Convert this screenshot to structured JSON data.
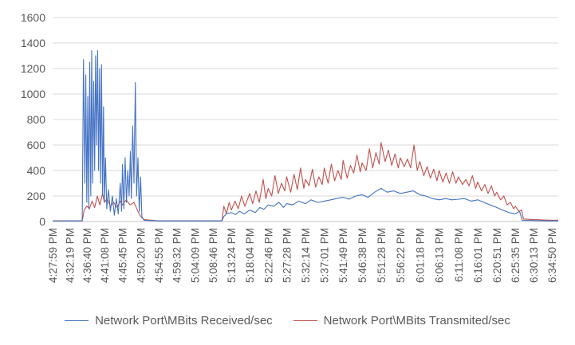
{
  "chart_data": {
    "type": "line",
    "title": "",
    "xlabel": "",
    "ylabel": "",
    "ylim": [
      0,
      1600
    ],
    "y_ticks": [
      0,
      200,
      400,
      600,
      800,
      1000,
      1200,
      1400,
      1600
    ],
    "gridlines": true,
    "legend_position": "bottom",
    "x_tick_labels": [
      "4:27:59 PM",
      "4:32:19 PM",
      "4:36:40 PM",
      "4:41:08 PM",
      "4:45:45 PM",
      "4:50:20 PM",
      "4:54:55 PM",
      "4:59:32 PM",
      "5:04:09 PM",
      "5:08:46 PM",
      "5:13:24 PM",
      "5:18:04 PM",
      "5:22:46 PM",
      "5:27:28 PM",
      "5:32:14 PM",
      "5:37:01 PM",
      "5:41:49 PM",
      "5:46:38 PM",
      "5:51:28 PM",
      "5:56:22 PM",
      "6:01:18 PM",
      "6:06:13 PM",
      "6:11:08 PM",
      "6:16:01 PM",
      "6:20:51 PM",
      "6:25:35 PM",
      "6:30:13 PM",
      "6:34:50 PM"
    ],
    "x_range": [
      "4:27:59 PM",
      "6:36:30 PM"
    ],
    "series": [
      {
        "name": "Network Port\\MBits Received/sec",
        "color": "#4472c4",
        "points": [
          [
            "4:27:59 PM",
            5
          ],
          [
            "4:32:19 PM",
            5
          ],
          [
            "4:35:30 PM",
            5
          ],
          [
            "4:35:50 PM",
            1270
          ],
          [
            "4:36:10 PM",
            300
          ],
          [
            "4:36:25 PM",
            1150
          ],
          [
            "4:36:40 PM",
            150
          ],
          [
            "4:36:55 PM",
            980
          ],
          [
            "4:37:10 PM",
            100
          ],
          [
            "4:37:25 PM",
            1250
          ],
          [
            "4:37:40 PM",
            200
          ],
          [
            "4:37:55 PM",
            1340
          ],
          [
            "4:38:10 PM",
            300
          ],
          [
            "4:38:25 PM",
            1100
          ],
          [
            "4:38:40 PM",
            400
          ],
          [
            "4:38:55 PM",
            1300
          ],
          [
            "4:39:10 PM",
            600
          ],
          [
            "4:39:25 PM",
            1340
          ],
          [
            "4:39:40 PM",
            400
          ],
          [
            "4:39:55 PM",
            1200
          ],
          [
            "4:40:10 PM",
            300
          ],
          [
            "4:40:25 PM",
            1230
          ],
          [
            "4:40:40 PM",
            200
          ],
          [
            "4:40:55 PM",
            900
          ],
          [
            "4:41:08 PM",
            150
          ],
          [
            "4:41:25 PM",
            500
          ],
          [
            "4:41:45 PM",
            100
          ],
          [
            "4:42:10 PM",
            250
          ],
          [
            "4:42:40 PM",
            80
          ],
          [
            "4:43:10 PM",
            200
          ],
          [
            "4:43:40 PM",
            50
          ],
          [
            "4:44:10 PM",
            180
          ],
          [
            "4:44:40 PM",
            60
          ],
          [
            "4:45:10 PM",
            300
          ],
          [
            "4:45:30 PM",
            80
          ],
          [
            "4:45:45 PM",
            450
          ],
          [
            "4:46:05 PM",
            100
          ],
          [
            "4:46:25 PM",
            500
          ],
          [
            "4:46:45 PM",
            150
          ],
          [
            "4:47:05 PM",
            400
          ],
          [
            "4:47:25 PM",
            200
          ],
          [
            "4:47:45 PM",
            550
          ],
          [
            "4:48:00 PM",
            180
          ],
          [
            "4:48:20 PM",
            750
          ],
          [
            "4:48:40 PM",
            300
          ],
          [
            "4:49:00 PM",
            1090
          ],
          [
            "4:49:20 PM",
            200
          ],
          [
            "4:49:40 PM",
            500
          ],
          [
            "4:50:00 PM",
            80
          ],
          [
            "4:50:20 PM",
            350
          ],
          [
            "4:50:40 PM",
            40
          ],
          [
            "4:51:10 PM",
            10
          ],
          [
            "4:54:55 PM",
            5
          ],
          [
            "5:04:09 PM",
            5
          ],
          [
            "5:11:00 PM",
            5
          ],
          [
            "5:11:30 PM",
            40
          ],
          [
            "5:12:10 PM",
            60
          ],
          [
            "5:13:24 PM",
            70
          ],
          [
            "5:14:30 PM",
            55
          ],
          [
            "5:15:30 PM",
            80
          ],
          [
            "5:16:40 PM",
            60
          ],
          [
            "5:18:04 PM",
            90
          ],
          [
            "5:19:30 PM",
            70
          ],
          [
            "5:20:40 PM",
            110
          ],
          [
            "5:21:40 PM",
            95
          ],
          [
            "5:22:46 PM",
            130
          ],
          [
            "5:24:10 PM",
            120
          ],
          [
            "5:25:30 PM",
            150
          ],
          [
            "5:26:40 PM",
            110
          ],
          [
            "5:27:28 PM",
            140
          ],
          [
            "5:29:00 PM",
            130
          ],
          [
            "5:30:30 PM",
            160
          ],
          [
            "5:32:14 PM",
            140
          ],
          [
            "5:33:40 PM",
            170
          ],
          [
            "5:35:20 PM",
            150
          ],
          [
            "5:37:01 PM",
            160
          ],
          [
            "5:38:40 PM",
            170
          ],
          [
            "5:40:10 PM",
            180
          ],
          [
            "5:41:49 PM",
            190
          ],
          [
            "5:43:20 PM",
            175
          ],
          [
            "5:45:00 PM",
            200
          ],
          [
            "5:46:38 PM",
            210
          ],
          [
            "5:48:10 PM",
            190
          ],
          [
            "5:49:50 PM",
            230
          ],
          [
            "5:51:28 PM",
            260
          ],
          [
            "5:53:00 PM",
            230
          ],
          [
            "5:54:40 PM",
            240
          ],
          [
            "5:56:22 PM",
            220
          ],
          [
            "5:58:00 PM",
            230
          ],
          [
            "5:59:40 PM",
            240
          ],
          [
            "6:01:18 PM",
            210
          ],
          [
            "6:02:50 PM",
            200
          ],
          [
            "6:04:30 PM",
            180
          ],
          [
            "6:06:13 PM",
            170
          ],
          [
            "6:07:50 PM",
            180
          ],
          [
            "6:09:30 PM",
            170
          ],
          [
            "6:11:08 PM",
            175
          ],
          [
            "6:12:40 PM",
            180
          ],
          [
            "6:14:20 PM",
            160
          ],
          [
            "6:16:01 PM",
            170
          ],
          [
            "6:17:40 PM",
            150
          ],
          [
            "6:19:10 PM",
            130
          ],
          [
            "6:20:51 PM",
            110
          ],
          [
            "6:22:20 PM",
            90
          ],
          [
            "6:24:00 PM",
            70
          ],
          [
            "6:25:35 PM",
            60
          ],
          [
            "6:26:40 PM",
            80
          ],
          [
            "6:27:20 PM",
            10
          ],
          [
            "6:30:13 PM",
            8
          ],
          [
            "6:34:50 PM",
            5
          ],
          [
            "6:36:30 PM",
            5
          ]
        ]
      },
      {
        "name": "Network Port\\MBits Transmited/sec",
        "color": "#c0504d",
        "points": [
          [
            "4:27:59 PM",
            5
          ],
          [
            "4:32:19 PM",
            5
          ],
          [
            "4:35:30 PM",
            5
          ],
          [
            "4:36:00 PM",
            90
          ],
          [
            "4:36:40 PM",
            120
          ],
          [
            "4:37:20 PM",
            100
          ],
          [
            "4:38:00 PM",
            160
          ],
          [
            "4:38:40 PM",
            110
          ],
          [
            "4:39:20 PM",
            200
          ],
          [
            "4:40:00 PM",
            130
          ],
          [
            "4:40:40 PM",
            220
          ],
          [
            "4:41:08 PM",
            150
          ],
          [
            "4:41:50 PM",
            180
          ],
          [
            "4:42:40 PM",
            120
          ],
          [
            "4:43:30 PM",
            150
          ],
          [
            "4:44:20 PM",
            110
          ],
          [
            "4:45:10 PM",
            160
          ],
          [
            "4:45:45 PM",
            130
          ],
          [
            "4:46:40 PM",
            170
          ],
          [
            "4:47:40 PM",
            130
          ],
          [
            "4:48:40 PM",
            150
          ],
          [
            "4:49:40 PM",
            80
          ],
          [
            "4:50:20 PM",
            40
          ],
          [
            "4:51:10 PM",
            15
          ],
          [
            "4:54:55 PM",
            5
          ],
          [
            "5:04:09 PM",
            5
          ],
          [
            "5:11:00 PM",
            5
          ],
          [
            "5:11:30 PM",
            120
          ],
          [
            "5:12:10 PM",
            60
          ],
          [
            "5:12:50 PM",
            150
          ],
          [
            "5:13:24 PM",
            90
          ],
          [
            "5:14:20 PM",
            160
          ],
          [
            "5:15:10 PM",
            100
          ],
          [
            "5:16:00 PM",
            200
          ],
          [
            "5:16:50 PM",
            120
          ],
          [
            "5:18:04 PM",
            220
          ],
          [
            "5:18:50 PM",
            140
          ],
          [
            "5:19:40 PM",
            240
          ],
          [
            "5:20:30 PM",
            150
          ],
          [
            "5:21:30 PM",
            330
          ],
          [
            "5:22:10 PM",
            180
          ],
          [
            "5:22:46 PM",
            260
          ],
          [
            "5:23:40 PM",
            200
          ],
          [
            "5:24:30 PM",
            360
          ],
          [
            "5:25:20 PM",
            220
          ],
          [
            "5:26:10 PM",
            300
          ],
          [
            "5:27:00 PM",
            240
          ],
          [
            "5:27:28 PM",
            350
          ],
          [
            "5:28:30 PM",
            230
          ],
          [
            "5:29:20 PM",
            370
          ],
          [
            "5:30:10 PM",
            250
          ],
          [
            "5:31:00 PM",
            420
          ],
          [
            "5:31:50 PM",
            260
          ],
          [
            "5:32:14 PM",
            330
          ],
          [
            "5:33:10 PM",
            280
          ],
          [
            "5:34:00 PM",
            410
          ],
          [
            "5:34:50 PM",
            270
          ],
          [
            "5:35:40 PM",
            350
          ],
          [
            "5:36:30 PM",
            290
          ],
          [
            "5:37:01 PM",
            420
          ],
          [
            "5:38:00 PM",
            300
          ],
          [
            "5:38:50 PM",
            450
          ],
          [
            "5:39:40 PM",
            320
          ],
          [
            "5:40:30 PM",
            400
          ],
          [
            "5:41:20 PM",
            330
          ],
          [
            "5:41:49 PM",
            480
          ],
          [
            "5:42:50 PM",
            340
          ],
          [
            "5:43:40 PM",
            440
          ],
          [
            "5:44:30 PM",
            380
          ],
          [
            "5:45:20 PM",
            520
          ],
          [
            "5:46:10 PM",
            390
          ],
          [
            "5:46:38 PM",
            460
          ],
          [
            "5:47:40 PM",
            400
          ],
          [
            "5:48:30 PM",
            570
          ],
          [
            "5:49:20 PM",
            420
          ],
          [
            "5:50:10 PM",
            540
          ],
          [
            "5:51:00 PM",
            450
          ],
          [
            "5:51:28 PM",
            620
          ],
          [
            "5:52:30 PM",
            470
          ],
          [
            "5:53:20 PM",
            560
          ],
          [
            "5:54:10 PM",
            440
          ],
          [
            "5:55:00 PM",
            530
          ],
          [
            "5:55:50 PM",
            420
          ],
          [
            "5:56:22 PM",
            500
          ],
          [
            "5:57:20 PM",
            430
          ],
          [
            "5:58:10 PM",
            490
          ],
          [
            "5:59:00 PM",
            420
          ],
          [
            "5:59:50 PM",
            600
          ],
          [
            "6:00:40 PM",
            400
          ],
          [
            "6:01:18 PM",
            470
          ],
          [
            "6:02:20 PM",
            360
          ],
          [
            "6:03:10 PM",
            430
          ],
          [
            "6:04:00 PM",
            340
          ],
          [
            "6:04:50 PM",
            410
          ],
          [
            "6:05:40 PM",
            320
          ],
          [
            "6:06:13 PM",
            400
          ],
          [
            "6:07:10 PM",
            310
          ],
          [
            "6:08:00 PM",
            380
          ],
          [
            "6:08:50 PM",
            300
          ],
          [
            "6:09:40 PM",
            390
          ],
          [
            "6:10:30 PM",
            300
          ],
          [
            "6:11:08 PM",
            350
          ],
          [
            "6:12:10 PM",
            290
          ],
          [
            "6:13:00 PM",
            330
          ],
          [
            "6:13:50 PM",
            280
          ],
          [
            "6:14:40 PM",
            360
          ],
          [
            "6:15:30 PM",
            260
          ],
          [
            "6:16:01 PM",
            310
          ],
          [
            "6:17:00 PM",
            240
          ],
          [
            "6:17:50 PM",
            290
          ],
          [
            "6:18:40 PM",
            220
          ],
          [
            "6:19:30 PM",
            280
          ],
          [
            "6:20:20 PM",
            200
          ],
          [
            "6:20:51 PM",
            230
          ],
          [
            "6:21:50 PM",
            170
          ],
          [
            "6:22:40 PM",
            200
          ],
          [
            "6:23:30 PM",
            130
          ],
          [
            "6:24:20 PM",
            150
          ],
          [
            "6:25:10 PM",
            100
          ],
          [
            "6:25:35 PM",
            120
          ],
          [
            "6:26:30 PM",
            80
          ],
          [
            "6:27:10 PM",
            90
          ],
          [
            "6:27:40 PM",
            20
          ],
          [
            "6:30:13 PM",
            15
          ],
          [
            "6:34:50 PM",
            10
          ],
          [
            "6:36:30 PM",
            10
          ]
        ]
      }
    ]
  }
}
